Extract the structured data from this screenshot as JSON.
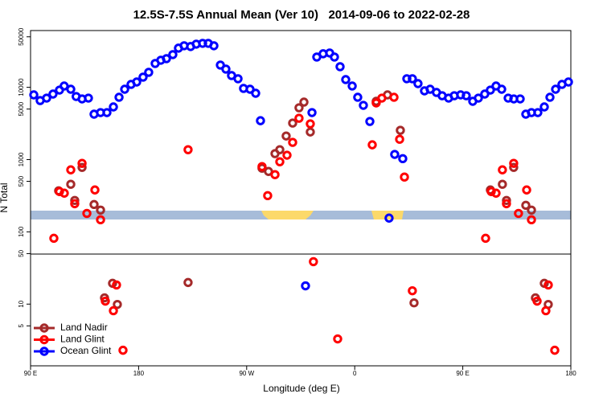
{
  "chart_data": {
    "type": "scatter",
    "title": "12.5S-7.5S Annual Mean (Ver 10)   2014-09-06 to 2022-02-28",
    "x_label": "Longitude (deg E)",
    "y_label": "N Total",
    "xlim": [
      90,
      540
    ],
    "xticks": [
      {
        "value": 90,
        "label": "90 E"
      },
      180,
      {
        "value": 270,
        "label": "90 W"
      },
      {
        "value": 360,
        "label": "0"
      },
      {
        "value": 450,
        "label": "90 E"
      },
      {
        "value": 540,
        "label": "180"
      }
    ],
    "ylim": [
      1.4,
      61000
    ],
    "yticks": [
      50000,
      10000,
      5000,
      1000,
      500,
      100,
      50,
      10,
      5
    ],
    "ylog": true,
    "legend": "bottom-left",
    "series": [
      {
        "name": "Land Nadir",
        "color": "#a52a2a",
        "x": [
          113.4,
          123.5,
          126.8,
          132.9,
          142.9,
          148.3,
          151.6,
          158.3,
          162.3,
          221.2,
          282.8,
          288.2,
          293.6,
          297.6,
          302.9,
          308.3,
          313.6,
          317.7,
          323,
          377.9,
          387.3,
          398,
          409.4,
          473,
          483,
          486.4,
          492.4,
          502.5,
          507.2,
          510.5,
          517.9,
          521.2
        ],
        "values": [
          370,
          455,
          272,
          780,
          239,
          200,
          12.2,
          19.4,
          9.9,
          19.9,
          760,
          685,
          1210,
          1370,
          2120,
          3200,
          5210,
          6240,
          2410,
          6400,
          7860,
          2540,
          10.4,
          380,
          455,
          272,
          780,
          233,
          200,
          12.2,
          19.4,
          9.9
        ]
      },
      {
        "name": "Land Glint",
        "color": "#ff0000",
        "x": [
          109.4,
          114.1,
          118.1,
          123.5,
          132.9,
          126.8,
          136.9,
          143.6,
          148.3,
          152.3,
          159,
          161.6,
          167,
          221.2,
          282.8,
          287.5,
          293.6,
          297.6,
          303.6,
          308.3,
          313.6,
          323,
          325.6,
          345.8,
          374.6,
          377.9,
          382.6,
          392.7,
          397.4,
          401.4,
          408,
          469,
          473.7,
          477.7,
          483,
          492.4,
          486.4,
          496.4,
          503.2,
          507.2,
          511.9,
          519.2,
          521.2,
          526.6
        ],
        "values": [
          81.5,
          361,
          343,
          721,
          887,
          245,
          180,
          380,
          147,
          11,
          8.1,
          18.4,
          2.3,
          1370,
          800,
          317,
          619,
          933,
          1150,
          1730,
          3730,
          3120,
          38.7,
          3.3,
          1600,
          6080,
          7090,
          7280,
          1910,
          573,
          15.3,
          81.5,
          361,
          343,
          721,
          887,
          245,
          180,
          380,
          147,
          11,
          8.1,
          18.4,
          2.3
        ]
      },
      {
        "name": "Ocean Glint",
        "color": "#0000ff",
        "x": [
          92.7,
          98,
          103.4,
          108.7,
          114.1,
          118,
          123.5,
          128,
          132.9,
          138.2,
          142.9,
          148.3,
          153.6,
          159,
          163.7,
          168.4,
          173.7,
          178.4,
          183.7,
          188.4,
          193.8,
          198.5,
          203.2,
          208.5,
          213.2,
          217.9,
          223.3,
          228,
          233.3,
          238,
          242.7,
          248.1,
          252.7,
          257.4,
          262.8,
          267.4,
          272.8,
          277.5,
          281.5,
          319,
          324.4,
          328.4,
          333.7,
          339.1,
          343.1,
          347.8,
          352.5,
          357.9,
          362.5,
          367.2,
          372.6,
          388.6,
          393.3,
          400,
          403.4,
          408,
          412.7,
          418.1,
          422.8,
          428.1,
          432.8,
          438.2,
          442.9,
          448.2,
          452.9,
          458.3,
          463,
          468.3,
          473,
          477.7,
          482.4,
          487.8,
          492.5,
          497.8,
          502.5,
          507.2,
          512.5,
          517.9,
          522.6,
          527.3,
          532.6,
          538
        ],
        "values": [
          7860,
          6560,
          7090,
          8060,
          9160,
          10420,
          9400,
          7460,
          6910,
          7090,
          4250,
          4470,
          4470,
          5350,
          7280,
          9400,
          10970,
          11840,
          13820,
          16120,
          21380,
          23700,
          24930,
          28360,
          34830,
          37600,
          36660,
          39570,
          40600,
          40600,
          37600,
          20310,
          17870,
          14550,
          13140,
          9660,
          9400,
          8270,
          3450,
          17.9,
          4470,
          26240,
          29110,
          29850,
          26240,
          19290,
          12790,
          10420,
          7280,
          5630,
          3370,
          155,
          1180,
          1030,
          13140,
          13140,
          11250,
          8930,
          9400,
          8490,
          7650,
          7090,
          7650,
          7860,
          7650,
          6400,
          7090,
          8060,
          9160,
          10420,
          9400,
          7090,
          6910,
          6910,
          4250,
          4470,
          4470,
          5350,
          7280,
          9400,
          10970,
          11840
        ]
      }
    ]
  }
}
